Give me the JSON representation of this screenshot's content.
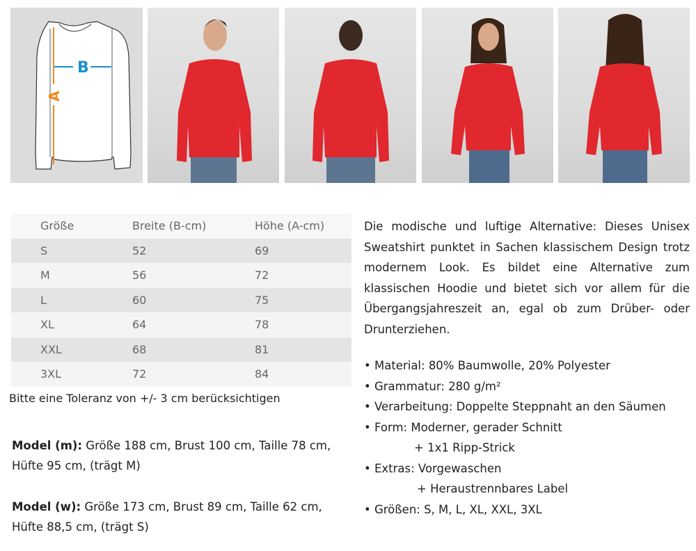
{
  "images": {
    "diagram": {
      "label_width": "B",
      "label_height": "A",
      "color_width": "#1a8fd0",
      "color_height": "#f08a1e"
    },
    "photos": [
      {
        "view": "man-front"
      },
      {
        "view": "man-back"
      },
      {
        "view": "woman-front"
      },
      {
        "view": "woman-back"
      }
    ],
    "garment_color": "#e0282e"
  },
  "size_table": {
    "headers": [
      "Größe",
      "Breite (B-cm)",
      "Höhe (A-cm)"
    ],
    "rows": [
      [
        "S",
        "52",
        "69"
      ],
      [
        "M",
        "56",
        "72"
      ],
      [
        "L",
        "60",
        "75"
      ],
      [
        "XL",
        "64",
        "78"
      ],
      [
        "XXL",
        "68",
        "81"
      ],
      [
        "3XL",
        "72",
        "84"
      ]
    ],
    "tolerance_note": "Bitte eine Toleranz von +/- 3 cm berücksichtigen"
  },
  "models": {
    "m": {
      "label": "Model (m):",
      "text": "Größe 188 cm, Brust 100 cm, Taille 78 cm,",
      "text2": "Hüfte 95 cm, (trägt M)"
    },
    "w": {
      "label": "Model (w):",
      "text": "Größe 173 cm, Brust 89 cm, Taille 62 cm,",
      "text2": "Hüfte 88,5 cm, (trägt S)"
    }
  },
  "description": "Die modische und luftige Alternative: Dieses Unisex Sweatshirt punktet in Sachen klassischem Design trotz modernem Look. Es bildet eine Alternative zum klassischen Hoodie und bietet sich vor allem für die Übergangsjahreszeit an, egal ob zum Drüber- oder Drunterziehen.",
  "features": [
    {
      "text": "• Material: 80% Baumwolle, 20% Polyester"
    },
    {
      "text": "• Grammatur: 280 g/m²"
    },
    {
      "text": "• Verarbeitung: Doppelte Steppnaht an den Säumen"
    },
    {
      "text": "• Form: Moderner, gerader Schnitt",
      "sub": "+ 1x1 Ripp-Strick"
    },
    {
      "text": "• Extras: Vorgewaschen",
      "sub": "+ Heraustrennbares Label"
    },
    {
      "text": "• Größen:  S, M, L, XL, XXL, 3XL"
    }
  ]
}
